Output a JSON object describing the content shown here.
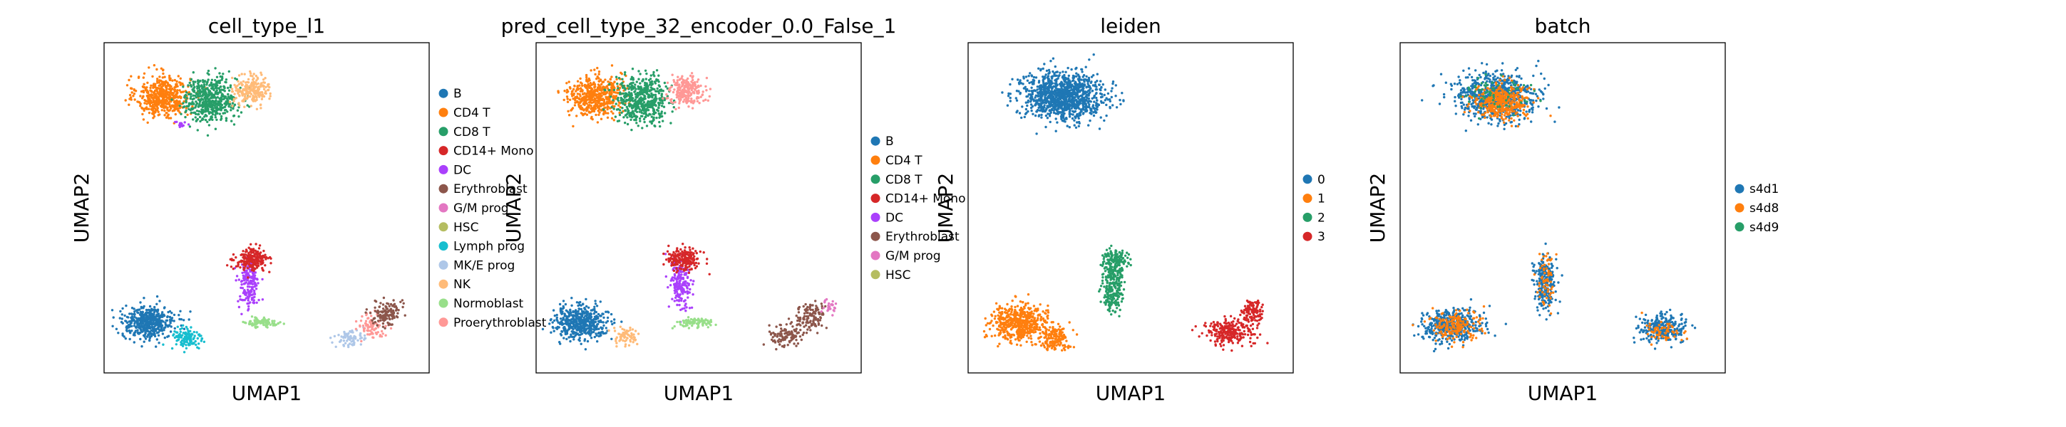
{
  "chart_data": [
    {
      "type": "scatter",
      "title": "cell_type_l1",
      "xlabel": "UMAP1",
      "ylabel": "UMAP2",
      "grid": false,
      "legend_position": "right",
      "legend": [
        {
          "name": "B",
          "color": "#1f77b4"
        },
        {
          "name": "CD4 T",
          "color": "#ff7f0e"
        },
        {
          "name": "CD8 T",
          "color": "#279e68"
        },
        {
          "name": "CD14+ Mono",
          "color": "#d62728"
        },
        {
          "name": "DC",
          "color": "#aa40fc"
        },
        {
          "name": "Erythroblast",
          "color": "#8c564b"
        },
        {
          "name": "G/M prog",
          "color": "#e377c2"
        },
        {
          "name": "HSC",
          "color": "#b5bd61"
        },
        {
          "name": "Lymph prog",
          "color": "#17becf"
        },
        {
          "name": "MK/E prog",
          "color": "#aec7e8"
        },
        {
          "name": "NK",
          "color": "#ffbb78"
        },
        {
          "name": "Normoblast",
          "color": "#98df8a"
        },
        {
          "name": "Proerythroblast",
          "color": "#ff9896"
        }
      ],
      "clusters": [
        {
          "x": 2.0,
          "y": 8.8,
          "sx": 0.9,
          "sy": 0.65,
          "color": "#ff7f0e",
          "n": 520
        },
        {
          "x": 3.6,
          "y": 8.7,
          "sx": 0.9,
          "sy": 0.7,
          "color": "#279e68",
          "n": 520
        },
        {
          "x": 5.0,
          "y": 9.0,
          "sx": 0.6,
          "sy": 0.45,
          "color": "#ffbb78",
          "n": 220
        },
        {
          "x": 2.6,
          "y": 7.9,
          "sx": 0.2,
          "sy": 0.1,
          "color": "#aa40fc",
          "n": 15
        },
        {
          "x": 1.5,
          "y": 1.6,
          "sx": 0.9,
          "sy": 0.5,
          "color": "#1f77b4",
          "n": 460
        },
        {
          "x": 2.8,
          "y": 1.1,
          "sx": 0.5,
          "sy": 0.4,
          "color": "#17becf",
          "n": 120
        },
        {
          "x": 4.9,
          "y": 2.8,
          "sx": 0.35,
          "sy": 0.8,
          "color": "#aa40fc",
          "n": 180
        },
        {
          "x": 5.0,
          "y": 3.6,
          "sx": 0.55,
          "sy": 0.35,
          "color": "#d62728",
          "n": 200
        },
        {
          "x": 5.4,
          "y": 1.6,
          "sx": 0.6,
          "sy": 0.15,
          "color": "#98df8a",
          "n": 90
        },
        {
          "x": 8.3,
          "y": 1.1,
          "sx": 0.5,
          "sy": 0.25,
          "color": "#aec7e8",
          "n": 70
        },
        {
          "x": 9.0,
          "y": 1.5,
          "sx": 0.45,
          "sy": 0.4,
          "color": "#ff9896",
          "n": 80
        },
        {
          "x": 9.6,
          "y": 1.9,
          "sx": 0.45,
          "sy": 0.4,
          "color": "#8c564b",
          "n": 130
        }
      ]
    },
    {
      "type": "scatter",
      "title": "pred_cell_type_32_encoder_0.0_False_1",
      "xlabel": "UMAP1",
      "ylabel": "UMAP2",
      "grid": false,
      "legend_position": "right",
      "legend": [
        {
          "name": "B",
          "color": "#1f77b4"
        },
        {
          "name": "CD4 T",
          "color": "#ff7f0e"
        },
        {
          "name": "CD8 T",
          "color": "#279e68"
        },
        {
          "name": "CD14+ Mono",
          "color": "#d62728"
        },
        {
          "name": "DC",
          "color": "#aa40fc"
        },
        {
          "name": "Erythroblast",
          "color": "#8c564b"
        },
        {
          "name": "G/M prog",
          "color": "#e377c2"
        },
        {
          "name": "HSC",
          "color": "#b5bd61"
        }
      ],
      "clusters": [
        {
          "x": 2.0,
          "y": 8.8,
          "sx": 0.9,
          "sy": 0.65,
          "color": "#ff7f0e",
          "n": 520
        },
        {
          "x": 3.6,
          "y": 8.7,
          "sx": 0.9,
          "sy": 0.7,
          "color": "#279e68",
          "n": 520
        },
        {
          "x": 5.1,
          "y": 9.0,
          "sx": 0.6,
          "sy": 0.45,
          "color": "#ff9896",
          "n": 220
        },
        {
          "x": 1.5,
          "y": 1.6,
          "sx": 0.9,
          "sy": 0.5,
          "color": "#1f77b4",
          "n": 520
        },
        {
          "x": 3.0,
          "y": 1.2,
          "sx": 0.4,
          "sy": 0.3,
          "color": "#ffbb78",
          "n": 70
        },
        {
          "x": 4.9,
          "y": 2.8,
          "sx": 0.35,
          "sy": 0.8,
          "color": "#aa40fc",
          "n": 180
        },
        {
          "x": 5.0,
          "y": 3.6,
          "sx": 0.55,
          "sy": 0.35,
          "color": "#d62728",
          "n": 200
        },
        {
          "x": 5.4,
          "y": 1.6,
          "sx": 0.6,
          "sy": 0.15,
          "color": "#98df8a",
          "n": 90
        },
        {
          "x": 8.5,
          "y": 1.2,
          "sx": 0.6,
          "sy": 0.35,
          "color": "#8c564b",
          "n": 110
        },
        {
          "x": 9.3,
          "y": 1.8,
          "sx": 0.5,
          "sy": 0.45,
          "color": "#8c564b",
          "n": 110
        },
        {
          "x": 9.9,
          "y": 2.1,
          "sx": 0.25,
          "sy": 0.3,
          "color": "#e377c2",
          "n": 25
        }
      ]
    },
    {
      "type": "scatter",
      "title": "leiden",
      "xlabel": "UMAP1",
      "ylabel": "UMAP2",
      "grid": false,
      "legend_position": "right",
      "legend": [
        {
          "name": "0",
          "color": "#1f77b4"
        },
        {
          "name": "1",
          "color": "#ff7f0e"
        },
        {
          "name": "2",
          "color": "#279e68"
        },
        {
          "name": "3",
          "color": "#d62728"
        }
      ],
      "clusters": [
        {
          "x": 3.2,
          "y": 8.8,
          "sx": 1.4,
          "sy": 0.75,
          "color": "#1f77b4",
          "n": 1100
        },
        {
          "x": 1.7,
          "y": 1.6,
          "sx": 0.95,
          "sy": 0.55,
          "color": "#ff7f0e",
          "n": 520
        },
        {
          "x": 2.9,
          "y": 1.1,
          "sx": 0.5,
          "sy": 0.35,
          "color": "#ff7f0e",
          "n": 160
        },
        {
          "x": 4.9,
          "y": 2.8,
          "sx": 0.35,
          "sy": 0.85,
          "color": "#279e68",
          "n": 260
        },
        {
          "x": 5.0,
          "y": 3.6,
          "sx": 0.45,
          "sy": 0.3,
          "color": "#279e68",
          "n": 120
        },
        {
          "x": 8.8,
          "y": 1.3,
          "sx": 0.8,
          "sy": 0.4,
          "color": "#d62728",
          "n": 240
        },
        {
          "x": 9.6,
          "y": 1.9,
          "sx": 0.45,
          "sy": 0.4,
          "color": "#d62728",
          "n": 120
        }
      ]
    },
    {
      "type": "scatter",
      "title": "batch",
      "xlabel": "UMAP1",
      "ylabel": "UMAP2",
      "grid": false,
      "legend_position": "right",
      "legend": [
        {
          "name": "s4d1",
          "color": "#1f77b4"
        },
        {
          "name": "s4d8",
          "color": "#ff7f0e"
        },
        {
          "name": "s4d9",
          "color": "#279e68"
        }
      ],
      "clusters": [
        {
          "x": 3.2,
          "y": 8.8,
          "sx": 1.4,
          "sy": 0.75,
          "color": "#1f77b4",
          "n": 700
        },
        {
          "x": 3.4,
          "y": 8.6,
          "sx": 0.9,
          "sy": 0.55,
          "color": "#ff7f0e",
          "n": 380
        },
        {
          "x": 3.0,
          "y": 8.9,
          "sx": 1.2,
          "sy": 0.6,
          "color": "#279e68",
          "n": 60
        },
        {
          "x": 1.7,
          "y": 1.5,
          "sx": 1.0,
          "sy": 0.55,
          "color": "#1f77b4",
          "n": 420
        },
        {
          "x": 1.8,
          "y": 1.5,
          "sx": 0.9,
          "sy": 0.5,
          "color": "#ff7f0e",
          "n": 170
        },
        {
          "x": 4.9,
          "y": 2.9,
          "sx": 0.35,
          "sy": 0.85,
          "color": "#1f77b4",
          "n": 240
        },
        {
          "x": 4.9,
          "y": 2.9,
          "sx": 0.3,
          "sy": 0.8,
          "color": "#ff7f0e",
          "n": 60
        },
        {
          "x": 8.9,
          "y": 1.4,
          "sx": 0.8,
          "sy": 0.45,
          "color": "#1f77b4",
          "n": 260
        },
        {
          "x": 8.8,
          "y": 1.3,
          "sx": 0.6,
          "sy": 0.35,
          "color": "#ff7f0e",
          "n": 60
        }
      ]
    }
  ]
}
